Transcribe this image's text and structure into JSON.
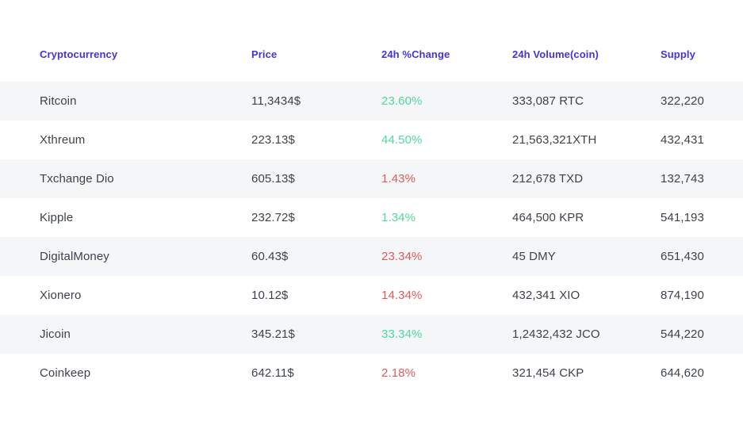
{
  "colors": {
    "header": "#4534d6",
    "positive": "#54d69c",
    "negative": "#e05a5a",
    "stripe": "#f5f6f8",
    "text": "#3d434b"
  },
  "table": {
    "columns": [
      {
        "label": "Cryptocurrency"
      },
      {
        "label": "Price"
      },
      {
        "label": "24h %Change"
      },
      {
        "label": "24h Volume(coin)"
      },
      {
        "label": "Supply"
      }
    ],
    "rows": [
      {
        "name": "Ritcoin",
        "price": "11,3434$",
        "change": "23.60%",
        "direction": "up",
        "volume": "333,087 RTC",
        "supply": "322,220"
      },
      {
        "name": "Xthreum",
        "price": "223.13$",
        "change": "44.50%",
        "direction": "up",
        "volume": "21,563,321XTH",
        "supply": "432,431"
      },
      {
        "name": "Txchange Dio",
        "price": "605.13$",
        "change": "1.43%",
        "direction": "down",
        "volume": "212,678 TXD",
        "supply": "132,743"
      },
      {
        "name": "Kipple",
        "price": "232.72$",
        "change": "1.34%",
        "direction": "up",
        "volume": "464,500 KPR",
        "supply": "541,193"
      },
      {
        "name": "DigitalMoney",
        "price": "60.43$",
        "change": "23.34%",
        "direction": "down",
        "volume": "45 DMY",
        "supply": "651,430"
      },
      {
        "name": "Xionero",
        "price": "10.12$",
        "change": "14.34%",
        "direction": "down",
        "volume": "432,341 XIO",
        "supply": "874,190"
      },
      {
        "name": "Jicoin",
        "price": "345.21$",
        "change": "33.34%",
        "direction": "up",
        "volume": "1,2432,432 JCO",
        "supply": "544,220"
      },
      {
        "name": "Coinkeep",
        "price": "642.11$",
        "change": "2.18%",
        "direction": "down",
        "volume": "321,454 CKP",
        "supply": "644,620"
      }
    ]
  }
}
